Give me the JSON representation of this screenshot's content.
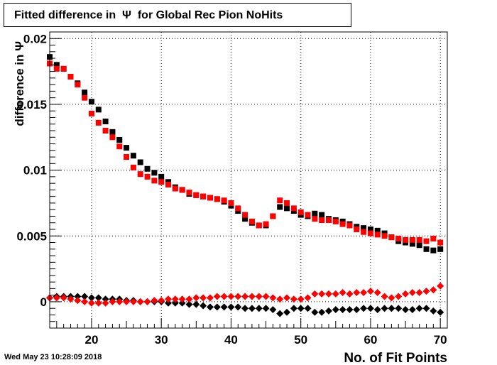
{
  "title": "Fitted difference in  Ψ  for Global Rec Pion NoHits",
  "timestamp": "Wed May 23 10:28:09 2018",
  "chart_data": {
    "type": "scatter",
    "title": "Fitted difference in  Ψ  for Global Rec Pion NoHits",
    "xlabel": "No. of Fit Points",
    "ylabel": "difference in Ψ",
    "xlim": [
      14,
      71
    ],
    "ylim": [
      -0.002,
      0.0205
    ],
    "xticks": [
      20,
      30,
      40,
      50,
      60,
      70
    ],
    "xtick_labels": [
      "20",
      "30",
      "40",
      "50",
      "60",
      "70"
    ],
    "yticks": [
      0,
      0.005,
      0.01,
      0.015,
      0.02
    ],
    "ytick_labels": [
      "0",
      "0.005",
      "0.01",
      "0.015",
      "0.02"
    ],
    "grid": true,
    "x": [
      14,
      15,
      16,
      17,
      18,
      19,
      20,
      21,
      22,
      23,
      24,
      25,
      26,
      27,
      28,
      29,
      30,
      31,
      32,
      33,
      34,
      35,
      36,
      37,
      38,
      39,
      40,
      41,
      42,
      43,
      44,
      45,
      46,
      47,
      48,
      49,
      50,
      51,
      52,
      53,
      54,
      55,
      56,
      57,
      58,
      59,
      60,
      61,
      62,
      63,
      64,
      65,
      66,
      67,
      68,
      69,
      70
    ],
    "series": [
      {
        "marker": "square",
        "color": "#000000",
        "values": [
          0.0186,
          0.018,
          0.0177,
          0.0171,
          0.0166,
          0.0159,
          0.0152,
          0.0146,
          0.0137,
          0.0129,
          0.0123,
          0.0117,
          0.0111,
          0.0106,
          0.0101,
          0.0098,
          0.0095,
          0.0091,
          0.0087,
          0.0085,
          0.0082,
          0.0081,
          0.008,
          0.0079,
          0.0078,
          0.0076,
          0.0073,
          0.0069,
          0.0063,
          0.006,
          0.0058,
          0.0058,
          0.0065,
          0.0072,
          0.0071,
          0.0069,
          0.0066,
          0.0065,
          0.0067,
          0.0066,
          0.0063,
          0.0062,
          0.0061,
          0.0059,
          0.0057,
          0.0056,
          0.0055,
          0.0054,
          0.0052,
          0.0049,
          0.0046,
          0.0045,
          0.0044,
          0.0043,
          0.004,
          0.0039,
          0.004
        ]
      },
      {
        "marker": "square",
        "color": "#ff0000",
        "values": [
          0.0181,
          0.0177,
          0.0177,
          0.0171,
          0.0165,
          0.0155,
          0.0143,
          0.0136,
          0.013,
          0.0125,
          0.0118,
          0.011,
          0.0102,
          0.0097,
          0.0095,
          0.0092,
          0.0091,
          0.0089,
          0.0086,
          0.0085,
          0.0083,
          0.0081,
          0.008,
          0.0079,
          0.0078,
          0.0077,
          0.0075,
          0.0071,
          0.0066,
          0.0061,
          0.0058,
          0.0059,
          0.0065,
          0.0077,
          0.0075,
          0.0071,
          0.0068,
          0.0066,
          0.0063,
          0.0062,
          0.0062,
          0.0061,
          0.0059,
          0.0058,
          0.0055,
          0.0053,
          0.0052,
          0.0051,
          0.005,
          0.0049,
          0.0048,
          0.0047,
          0.0047,
          0.0047,
          0.0046,
          0.0048,
          0.0045
        ]
      },
      {
        "marker": "diamond",
        "color": "#000000",
        "values": [
          0.0003,
          0.0004,
          0.0004,
          0.0004,
          0.0004,
          0.0004,
          0.0003,
          0.0003,
          0.0002,
          0.0002,
          0.0002,
          0.0001,
          0.0001,
          0.0,
          0.0,
          0.0,
          0.0,
          -0.0001,
          -0.0001,
          -0.0001,
          -0.0002,
          -0.0002,
          -0.0003,
          -0.0004,
          -0.0004,
          -0.0004,
          -0.0004,
          -0.0004,
          -0.0005,
          -0.0005,
          -0.0005,
          -0.0005,
          -0.0006,
          -0.0009,
          -0.0008,
          -0.0005,
          -0.0005,
          -0.0005,
          -0.0008,
          -0.0008,
          -0.0007,
          -0.0006,
          -0.0006,
          -0.0006,
          -0.0006,
          -0.0005,
          -0.0005,
          -0.0006,
          -0.0005,
          -0.0005,
          -0.0005,
          -0.0006,
          -0.0006,
          -0.0005,
          -0.0005,
          -0.0007,
          -0.0008
        ]
      },
      {
        "marker": "diamond",
        "color": "#ff0000",
        "values": [
          0.0003,
          0.0003,
          0.0003,
          0.0002,
          0.0001,
          0.0,
          -0.0001,
          -0.0001,
          -0.0001,
          0.0,
          0.0,
          0.0,
          0.0,
          0.0,
          0.0,
          0.0001,
          0.0001,
          0.0002,
          0.0002,
          0.0002,
          0.0002,
          0.0003,
          0.0003,
          0.0003,
          0.0004,
          0.0004,
          0.0004,
          0.0004,
          0.0004,
          0.0004,
          0.0004,
          0.0004,
          0.0003,
          0.0002,
          0.0003,
          0.0002,
          0.0002,
          0.0003,
          0.0006,
          0.0006,
          0.0006,
          0.0006,
          0.0007,
          0.0006,
          0.0007,
          0.0007,
          0.0008,
          0.0007,
          0.0004,
          0.0003,
          0.0004,
          0.0006,
          0.0007,
          0.0007,
          0.0008,
          0.0009,
          0.0012
        ]
      }
    ]
  }
}
